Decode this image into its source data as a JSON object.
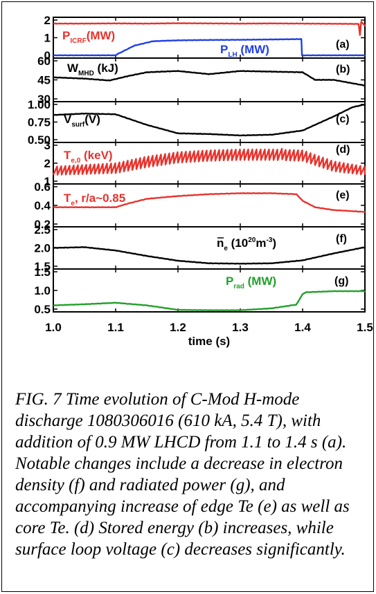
{
  "chart_data": {
    "type": "line",
    "x_range": [
      1.0,
      1.5
    ],
    "x_ticks": [
      "1.0",
      "1.1",
      "1.2",
      "1.3",
      "1.4",
      "1.5"
    ],
    "xlabel": "time (s)",
    "panels": [
      {
        "id": "a",
        "label": "(a)",
        "ylim": [
          0,
          2
        ],
        "yticks": [
          "0",
          "1",
          "2"
        ],
        "series": [
          {
            "name": "P_ICRF (MW)",
            "label_main": "P",
            "label_sub": "ICRF",
            "label_rest": "(MW)",
            "color": "#e8322c",
            "x": [
              1.0,
              1.05,
              1.1,
              1.15,
              1.2,
              1.25,
              1.3,
              1.35,
              1.4,
              1.45,
              1.49,
              1.492,
              1.494,
              1.5
            ],
            "y": [
              1.8,
              1.8,
              1.81,
              1.8,
              1.82,
              1.81,
              1.8,
              1.81,
              1.8,
              1.79,
              1.78,
              1.15,
              1.9,
              1.7
            ]
          },
          {
            "name": "P_LH (MW)",
            "label_main": "P",
            "label_sub": "LH",
            "label_rest": " (MW)",
            "color": "#1f3fe8",
            "x": [
              1.0,
              1.1,
              1.102,
              1.13,
              1.16,
              1.2,
              1.25,
              1.3,
              1.35,
              1.398,
              1.399,
              1.5
            ],
            "y": [
              0,
              0,
              0.05,
              0.55,
              0.8,
              0.85,
              0.87,
              0.88,
              0.9,
              0.92,
              0,
              0
            ]
          }
        ]
      },
      {
        "id": "b",
        "label": "(b)",
        "ylim": [
          30,
          60
        ],
        "yticks": [
          "30",
          "45",
          "60"
        ],
        "series": [
          {
            "name": "W_MHD (kJ)",
            "label_main": "W",
            "label_sub": "MHD",
            "label_rest": " (kJ)",
            "color": "#000000",
            "x": [
              1.0,
              1.05,
              1.09,
              1.12,
              1.15,
              1.2,
              1.25,
              1.3,
              1.35,
              1.4,
              1.42,
              1.45,
              1.5
            ],
            "y": [
              47,
              46,
              44.5,
              48,
              51,
              52,
              49.5,
              52,
              51.5,
              51,
              45,
              45,
              40.5
            ]
          }
        ]
      },
      {
        "id": "c",
        "label": "(c)",
        "ylim": [
          0.5,
          1.0
        ],
        "yticks": [
          "0.50",
          "0.75",
          "1.00"
        ],
        "series": [
          {
            "name": "V_surf (V)",
            "label_main": "V",
            "label_sub": "surf",
            "label_rest": "(V)",
            "color": "#000000",
            "x": [
              1.0,
              1.05,
              1.1,
              1.15,
              1.2,
              1.25,
              1.3,
              1.35,
              1.4,
              1.45,
              1.48,
              1.5
            ],
            "y": [
              0.85,
              0.87,
              0.86,
              0.71,
              0.59,
              0.58,
              0.56,
              0.57,
              0.63,
              0.83,
              0.96,
              1.0
            ]
          }
        ]
      },
      {
        "id": "d",
        "label": "(d)",
        "ylim": [
          1,
          3
        ],
        "yticks": [
          "1",
          "2",
          "3"
        ],
        "series": [
          {
            "name": "T_e,0 (keV)",
            "label_main": "T",
            "label_sub": "e,0",
            "label_rest": " (keV)",
            "color": "#e8322c",
            "oscillating": true,
            "cycles": 75,
            "x": [
              1.0,
              1.1,
              1.15,
              1.2,
              1.25,
              1.3,
              1.35,
              1.4,
              1.45,
              1.5
            ],
            "y": [
              1.6,
              1.75,
              2.1,
              2.35,
              2.45,
              2.5,
              2.5,
              2.45,
              1.85,
              1.6
            ],
            "amp": [
              0.25,
              0.3,
              0.32,
              0.32,
              0.32,
              0.32,
              0.32,
              0.32,
              0.3,
              0.25
            ]
          }
        ]
      },
      {
        "id": "e",
        "label": "(e)",
        "ylim": [
          0.2,
          0.6
        ],
        "yticks": [
          "0.2",
          "0.4",
          "0.6"
        ],
        "series": [
          {
            "name": "T_e, r/a~0.85",
            "label_main": "T",
            "label_sub": "e",
            "label_rest": ", r/a~0.85",
            "color": "#e8322c",
            "x": [
              1.0,
              1.05,
              1.1,
              1.12,
              1.15,
              1.2,
              1.25,
              1.3,
              1.35,
              1.39,
              1.4,
              1.42,
              1.45,
              1.5
            ],
            "y": [
              0.38,
              0.38,
              0.38,
              0.42,
              0.47,
              0.5,
              0.52,
              0.53,
              0.53,
              0.52,
              0.45,
              0.38,
              0.35,
              0.33
            ]
          }
        ]
      },
      {
        "id": "f",
        "label": "(f)",
        "ylim": [
          1.5,
          2.5
        ],
        "yticks": [
          "1.5",
          "2.0",
          "2.5"
        ],
        "series": [
          {
            "name": "n_e (10^20 m^-3)",
            "label_main": "n",
            "label_sub": "e",
            "label_rest": " (10",
            "label_sup": "20",
            "label_tail": "m",
            "label_sup2": "-3",
            "label_end": ")",
            "color": "#000000",
            "x": [
              1.0,
              1.05,
              1.1,
              1.15,
              1.2,
              1.25,
              1.3,
              1.35,
              1.4,
              1.45,
              1.5
            ],
            "y": [
              2.0,
              2.02,
              1.93,
              1.78,
              1.65,
              1.58,
              1.57,
              1.58,
              1.66,
              1.85,
              2.02
            ]
          }
        ]
      },
      {
        "id": "g",
        "label": "(g)",
        "ylim": [
          0.5,
          1.5
        ],
        "yticks": [
          "0.5",
          "1.0",
          "1.5"
        ],
        "series": [
          {
            "name": "P_rad (MW)",
            "label_main": "P",
            "label_sub": "rad",
            "label_rest": " (MW)",
            "color": "#22a02a",
            "x": [
              1.0,
              1.05,
              1.1,
              1.15,
              1.2,
              1.25,
              1.3,
              1.35,
              1.39,
              1.4,
              1.405,
              1.45,
              1.5
            ],
            "y": [
              0.6,
              0.63,
              0.67,
              0.6,
              0.48,
              0.47,
              0.47,
              0.52,
              0.62,
              0.9,
              0.95,
              0.98,
              0.98
            ]
          }
        ]
      }
    ]
  },
  "caption": "FIG. 7 Time evolution of C-Mod H-mode discharge 1080306016 (610 kA, 5.4 T), with addition of 0.9 MW LHCD from 1.1 to 1.4 s (a). Notable changes include a decrease in electron density (f) and radiated power (g), and accompanying increase of edge Te (e) as well as core Te. (d) Stored energy (b) increases, while surface loop voltage (c) decreases significantly."
}
